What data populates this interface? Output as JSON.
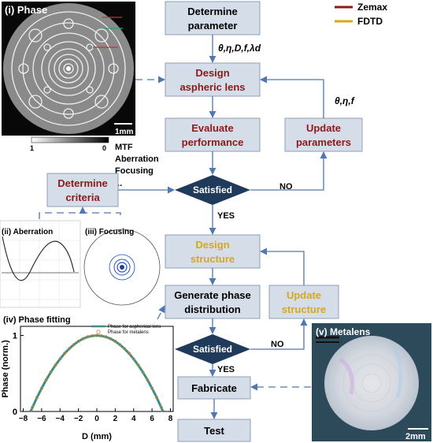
{
  "legend": [
    {
      "label": "Zemax",
      "color": "#8b1a1a"
    },
    {
      "label": "FDTD",
      "color": "#d7a81a"
    }
  ],
  "boxes": {
    "determine_parameter": [
      "Determine",
      "parameter"
    ],
    "design_aspheric": [
      "Design",
      "aspheric lens"
    ],
    "evaluate_performance": [
      "Evaluate",
      "performance"
    ],
    "update_parameters": [
      "Update",
      "parameters"
    ],
    "determine_criteria": [
      "Determine",
      "criteria"
    ],
    "design_structure": [
      "Design",
      "structure"
    ],
    "generate_phase": [
      "Generate phase",
      "distribution"
    ],
    "update_structure": [
      "Update",
      "structure"
    ],
    "fabricate": "Fabricate",
    "test": "Test"
  },
  "decisions": {
    "satisfied_1": "Satisfied",
    "satisfied_2": "Satisfied"
  },
  "branch_labels": {
    "no_1": "NO",
    "yes_1": "YES",
    "no_2": "NO",
    "yes_2": "YES"
  },
  "param_labels": {
    "top": "θ,η,D,f,λd",
    "right": "θ,η,f"
  },
  "criteria_list": [
    "MTF",
    "Aberration",
    "Focusing",
    "..."
  ],
  "panels": {
    "phase": {
      "label": "(i) Phase",
      "scale": "1mm",
      "colorbar_min": "1",
      "colorbar_max": "0"
    },
    "aberration": {
      "label": "(ii) Aberration"
    },
    "focusing": {
      "label": "(iii) Focusing"
    },
    "metalens": {
      "label": "(v) Metalens",
      "scale": "2mm"
    }
  },
  "colors": {
    "zemax": "#8b1a1a",
    "fdtd": "#d7a81a",
    "arrow": "#4f77b5",
    "box_fill": "#d5dde8",
    "diamond": "#1f3a5a"
  },
  "chart_data": {
    "type": "line",
    "title": "(iv) Phase fitting",
    "xlabel": "D (mm)",
    "ylabel": "Phase (norm.)",
    "xlim": [
      -8.3,
      8.3
    ],
    "ylim": [
      0,
      1.12
    ],
    "xticks": [
      -8,
      -6,
      -4,
      -2,
      0,
      2,
      4,
      6,
      8
    ],
    "yticks": [
      0,
      1
    ],
    "series": [
      {
        "name": "Phase for aspherical lens",
        "color": "#3a8f8a",
        "x": [
          -7.2,
          -6.5,
          -6,
          -5.5,
          -5,
          -4.5,
          -4,
          -3.5,
          -3,
          -2.5,
          -2,
          -1.5,
          -1,
          -0.5,
          0,
          0.5,
          1,
          1.5,
          2,
          2.5,
          3,
          3.5,
          4,
          4.5,
          5,
          5.5,
          6,
          6.5,
          7.2
        ],
        "y": [
          0,
          0.185,
          0.305,
          0.416,
          0.518,
          0.609,
          0.691,
          0.764,
          0.826,
          0.879,
          0.923,
          0.957,
          0.981,
          0.995,
          1,
          0.995,
          0.981,
          0.957,
          0.923,
          0.879,
          0.826,
          0.764,
          0.691,
          0.609,
          0.518,
          0.416,
          0.305,
          0.185,
          0
        ]
      },
      {
        "name": "Phase for metalens",
        "color": "#d08a3a",
        "x": [
          -7,
          -6.5,
          -6,
          -5.5,
          -5,
          -4.5,
          -4,
          -3.5,
          -3,
          -2.5,
          -2,
          -1.5,
          -1,
          -0.5,
          0,
          0.5,
          1,
          1.5,
          2,
          2.5,
          3,
          3.5,
          4,
          4.5,
          5,
          5.5,
          6,
          6.5,
          7
        ],
        "y": [
          0.055,
          0.185,
          0.305,
          0.416,
          0.518,
          0.609,
          0.691,
          0.764,
          0.826,
          0.879,
          0.923,
          0.957,
          0.981,
          0.995,
          1,
          0.995,
          0.981,
          0.957,
          0.923,
          0.879,
          0.826,
          0.764,
          0.691,
          0.609,
          0.518,
          0.416,
          0.305,
          0.185,
          0.055
        ]
      }
    ]
  }
}
